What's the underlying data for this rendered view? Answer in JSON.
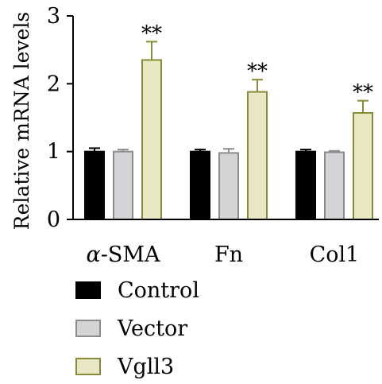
{
  "chart_data": {
    "type": "bar",
    "title": "",
    "xlabel": "",
    "ylabel": "Relative mRNA levels",
    "ylim": [
      0,
      3
    ],
    "yticks": [
      "0",
      "1",
      "2",
      "3"
    ],
    "categories": [
      "α-SMA",
      "Fn",
      "Col1"
    ],
    "series": [
      {
        "name": "Control",
        "values": [
          1.0,
          1.0,
          1.0
        ],
        "errors": [
          0.05,
          0.03,
          0.03
        ],
        "fill": "#000000",
        "stroke": "#000000"
      },
      {
        "name": "Vector",
        "values": [
          1.0,
          0.98,
          0.99
        ],
        "errors": [
          0.03,
          0.06,
          0.02
        ],
        "fill": "#d4d4d6",
        "stroke": "#8c8c8c"
      },
      {
        "name": "Vgll3",
        "values": [
          2.35,
          1.88,
          1.57
        ],
        "errors": [
          0.27,
          0.18,
          0.18
        ],
        "fill": "#e8e8c4",
        "stroke": "#888b3a"
      }
    ],
    "annotations": [
      "**",
      "**",
      "**"
    ],
    "legend_position": "bottom-left",
    "grid": false
  }
}
